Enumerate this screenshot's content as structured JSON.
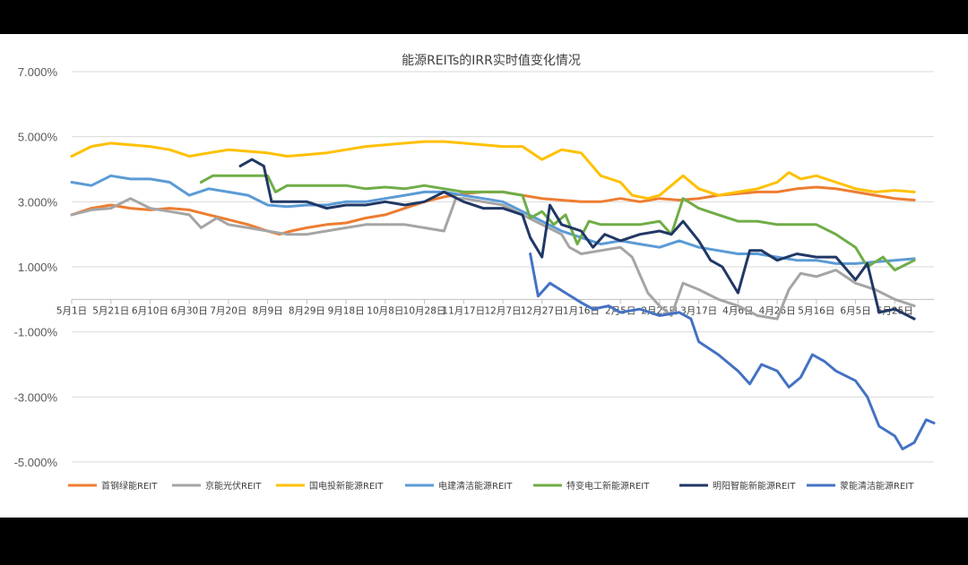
{
  "chart_data": {
    "type": "line",
    "title": "能源REITs的IRR实时值变化情况",
    "xlabel": "",
    "ylabel": "",
    "ylim": [
      -5,
      7
    ],
    "y_ticks": [
      7,
      5,
      3,
      1,
      -1,
      -3,
      -5
    ],
    "y_tick_labels": [
      "7.000%",
      "5.000%",
      "3.000%",
      "1.000%",
      "-1.000%",
      "-3.000%",
      "-5.000%"
    ],
    "x_tick_labels": [
      "5月1日",
      "5月21日",
      "6月10日",
      "6月30日",
      "7月20日",
      "8月9日",
      "8月29日",
      "9月18日",
      "10月8日",
      "10月28日",
      "11月17日",
      "12月7日",
      "12月27日",
      "1月16日",
      "2月5日",
      "2月25日",
      "3月17日",
      "4月6日",
      "4月26日",
      "5月16日",
      "6月5日",
      "6月25日"
    ],
    "x_tick_count": 22,
    "grid": true,
    "legend_position": "bottom",
    "series": [
      {
        "name": "首钢绿能REIT",
        "color": "#ED7D31",
        "points": [
          [
            0,
            2.6
          ],
          [
            0.5,
            2.8
          ],
          [
            1,
            2.9
          ],
          [
            1.5,
            2.8
          ],
          [
            2,
            2.75
          ],
          [
            2.5,
            2.8
          ],
          [
            3,
            2.75
          ],
          [
            3.5,
            2.6
          ],
          [
            4,
            2.45
          ],
          [
            4.5,
            2.3
          ],
          [
            5,
            2.1
          ],
          [
            5.3,
            2.0
          ],
          [
            5.6,
            2.1
          ],
          [
            6,
            2.2
          ],
          [
            6.5,
            2.3
          ],
          [
            7,
            2.35
          ],
          [
            7.5,
            2.5
          ],
          [
            8,
            2.6
          ],
          [
            8.5,
            2.8
          ],
          [
            9,
            3.0
          ],
          [
            9.5,
            3.15
          ],
          [
            10,
            3.25
          ],
          [
            10.5,
            3.3
          ],
          [
            11,
            3.3
          ],
          [
            11.5,
            3.2
          ],
          [
            12,
            3.1
          ],
          [
            12.5,
            3.05
          ],
          [
            13,
            3.0
          ],
          [
            13.5,
            3.0
          ],
          [
            14,
            3.1
          ],
          [
            14.5,
            3.0
          ],
          [
            15,
            3.1
          ],
          [
            15.5,
            3.05
          ],
          [
            16,
            3.1
          ],
          [
            16.5,
            3.2
          ],
          [
            17,
            3.25
          ],
          [
            17.5,
            3.3
          ],
          [
            18,
            3.3
          ],
          [
            18.5,
            3.4
          ],
          [
            19,
            3.45
          ],
          [
            19.5,
            3.4
          ],
          [
            20,
            3.3
          ],
          [
            20.5,
            3.2
          ],
          [
            21,
            3.1
          ],
          [
            21.5,
            3.05
          ]
        ]
      },
      {
        "name": "京能光伏REIT",
        "color": "#A5A5A5",
        "points": [
          [
            0,
            2.6
          ],
          [
            0.5,
            2.75
          ],
          [
            1,
            2.8
          ],
          [
            1.5,
            3.1
          ],
          [
            2,
            2.8
          ],
          [
            2.5,
            2.7
          ],
          [
            3,
            2.6
          ],
          [
            3.3,
            2.2
          ],
          [
            3.7,
            2.5
          ],
          [
            4,
            2.3
          ],
          [
            4.5,
            2.2
          ],
          [
            5,
            2.1
          ],
          [
            5.5,
            2.0
          ],
          [
            6,
            2.0
          ],
          [
            6.5,
            2.1
          ],
          [
            7,
            2.2
          ],
          [
            7.5,
            2.3
          ],
          [
            8,
            2.3
          ],
          [
            8.5,
            2.3
          ],
          [
            9,
            2.2
          ],
          [
            9.5,
            2.1
          ],
          [
            9.8,
            3.1
          ],
          [
            10,
            3.1
          ],
          [
            10.5,
            3.0
          ],
          [
            11,
            2.9
          ],
          [
            11.5,
            2.6
          ],
          [
            12,
            2.3
          ],
          [
            12.5,
            2.0
          ],
          [
            12.7,
            1.6
          ],
          [
            13,
            1.4
          ],
          [
            13.5,
            1.5
          ],
          [
            14,
            1.6
          ],
          [
            14.3,
            1.3
          ],
          [
            14.7,
            0.2
          ],
          [
            15,
            -0.2
          ],
          [
            15.3,
            -0.5
          ],
          [
            15.6,
            0.5
          ],
          [
            16,
            0.3
          ],
          [
            16.5,
            0.0
          ],
          [
            17,
            -0.2
          ],
          [
            17.5,
            -0.5
          ],
          [
            18,
            -0.6
          ],
          [
            18.3,
            0.3
          ],
          [
            18.6,
            0.8
          ],
          [
            19,
            0.7
          ],
          [
            19.5,
            0.9
          ],
          [
            20,
            0.5
          ],
          [
            20.5,
            0.3
          ],
          [
            21,
            0.0
          ],
          [
            21.5,
            -0.2
          ]
        ]
      },
      {
        "name": "国电投新能源REIT",
        "color": "#FFC000",
        "points": [
          [
            0,
            4.4
          ],
          [
            0.5,
            4.7
          ],
          [
            1,
            4.8
          ],
          [
            1.5,
            4.75
          ],
          [
            2,
            4.7
          ],
          [
            2.5,
            4.6
          ],
          [
            3,
            4.4
          ],
          [
            3.5,
            4.5
          ],
          [
            4,
            4.6
          ],
          [
            4.5,
            4.55
          ],
          [
            5,
            4.5
          ],
          [
            5.5,
            4.4
          ],
          [
            6,
            4.45
          ],
          [
            6.5,
            4.5
          ],
          [
            7,
            4.6
          ],
          [
            7.5,
            4.7
          ],
          [
            8,
            4.75
          ],
          [
            8.5,
            4.8
          ],
          [
            9,
            4.85
          ],
          [
            9.5,
            4.85
          ],
          [
            10,
            4.8
          ],
          [
            10.5,
            4.75
          ],
          [
            11,
            4.7
          ],
          [
            11.5,
            4.7
          ],
          [
            12,
            4.3
          ],
          [
            12.5,
            4.6
          ],
          [
            13,
            4.5
          ],
          [
            13.5,
            3.8
          ],
          [
            14,
            3.6
          ],
          [
            14.3,
            3.2
          ],
          [
            14.7,
            3.1
          ],
          [
            15,
            3.2
          ],
          [
            15.3,
            3.5
          ],
          [
            15.6,
            3.8
          ],
          [
            16,
            3.4
          ],
          [
            16.5,
            3.2
          ],
          [
            17,
            3.3
          ],
          [
            17.5,
            3.4
          ],
          [
            18,
            3.6
          ],
          [
            18.3,
            3.9
          ],
          [
            18.6,
            3.7
          ],
          [
            19,
            3.8
          ],
          [
            19.5,
            3.6
          ],
          [
            20,
            3.4
          ],
          [
            20.5,
            3.3
          ],
          [
            21,
            3.35
          ],
          [
            21.5,
            3.3
          ]
        ]
      },
      {
        "name": "电建清洁能源REIT",
        "color": "#5B9BD5",
        "points": [
          [
            0,
            3.6
          ],
          [
            0.5,
            3.5
          ],
          [
            1,
            3.8
          ],
          [
            1.5,
            3.7
          ],
          [
            2,
            3.7
          ],
          [
            2.5,
            3.6
          ],
          [
            3,
            3.2
          ],
          [
            3.5,
            3.4
          ],
          [
            4,
            3.3
          ],
          [
            4.5,
            3.2
          ],
          [
            5,
            2.9
          ],
          [
            5.5,
            2.85
          ],
          [
            6,
            2.9
          ],
          [
            6.5,
            2.9
          ],
          [
            7,
            3.0
          ],
          [
            7.5,
            3.0
          ],
          [
            8,
            3.1
          ],
          [
            8.5,
            3.2
          ],
          [
            9,
            3.3
          ],
          [
            9.5,
            3.3
          ],
          [
            10,
            3.2
          ],
          [
            10.5,
            3.1
          ],
          [
            11,
            3.0
          ],
          [
            11.5,
            2.7
          ],
          [
            12,
            2.4
          ],
          [
            12.5,
            2.1
          ],
          [
            13,
            1.9
          ],
          [
            13.5,
            1.7
          ],
          [
            14,
            1.8
          ],
          [
            14.5,
            1.7
          ],
          [
            15,
            1.6
          ],
          [
            15.5,
            1.8
          ],
          [
            16,
            1.6
          ],
          [
            16.5,
            1.5
          ],
          [
            17,
            1.4
          ],
          [
            17.5,
            1.4
          ],
          [
            18,
            1.3
          ],
          [
            18.5,
            1.2
          ],
          [
            19,
            1.2
          ],
          [
            19.5,
            1.1
          ],
          [
            20,
            1.1
          ],
          [
            20.5,
            1.15
          ],
          [
            21,
            1.2
          ],
          [
            21.5,
            1.25
          ]
        ]
      },
      {
        "name": "特变电工新能源REIT",
        "color": "#70AD47",
        "points": [
          [
            3.3,
            3.6
          ],
          [
            3.6,
            3.8
          ],
          [
            4,
            3.8
          ],
          [
            4.5,
            3.8
          ],
          [
            5,
            3.8
          ],
          [
            5.2,
            3.3
          ],
          [
            5.5,
            3.5
          ],
          [
            6,
            3.5
          ],
          [
            6.5,
            3.5
          ],
          [
            7,
            3.5
          ],
          [
            7.5,
            3.4
          ],
          [
            8,
            3.45
          ],
          [
            8.5,
            3.4
          ],
          [
            9,
            3.5
          ],
          [
            9.5,
            3.4
          ],
          [
            10,
            3.3
          ],
          [
            10.5,
            3.3
          ],
          [
            11,
            3.3
          ],
          [
            11.5,
            3.2
          ],
          [
            11.7,
            2.5
          ],
          [
            12,
            2.7
          ],
          [
            12.3,
            2.3
          ],
          [
            12.6,
            2.6
          ],
          [
            12.9,
            1.7
          ],
          [
            13.2,
            2.4
          ],
          [
            13.5,
            2.3
          ],
          [
            14,
            2.3
          ],
          [
            14.5,
            2.3
          ],
          [
            15,
            2.4
          ],
          [
            15.3,
            2.0
          ],
          [
            15.6,
            3.1
          ],
          [
            16,
            2.8
          ],
          [
            16.5,
            2.6
          ],
          [
            17,
            2.4
          ],
          [
            17.5,
            2.4
          ],
          [
            18,
            2.3
          ],
          [
            18.5,
            2.3
          ],
          [
            19,
            2.3
          ],
          [
            19.5,
            2.0
          ],
          [
            20,
            1.6
          ],
          [
            20.3,
            1.0
          ],
          [
            20.7,
            1.3
          ],
          [
            21,
            0.9
          ],
          [
            21.5,
            1.2
          ]
        ]
      },
      {
        "name": "明阳智能新能源REIT",
        "color": "#203864",
        "points": [
          [
            4.3,
            4.1
          ],
          [
            4.6,
            4.3
          ],
          [
            4.9,
            4.1
          ],
          [
            5.1,
            3.0
          ],
          [
            5.5,
            3.0
          ],
          [
            6,
            3.0
          ],
          [
            6.5,
            2.8
          ],
          [
            7,
            2.9
          ],
          [
            7.5,
            2.9
          ],
          [
            8,
            3.0
          ],
          [
            8.5,
            2.9
          ],
          [
            9,
            3.0
          ],
          [
            9.5,
            3.3
          ],
          [
            10,
            3.0
          ],
          [
            10.5,
            2.8
          ],
          [
            11,
            2.8
          ],
          [
            11.5,
            2.6
          ],
          [
            11.7,
            1.9
          ],
          [
            12,
            1.3
          ],
          [
            12.2,
            2.9
          ],
          [
            12.5,
            2.3
          ],
          [
            13,
            2.1
          ],
          [
            13.3,
            1.6
          ],
          [
            13.6,
            2.0
          ],
          [
            14,
            1.8
          ],
          [
            14.5,
            2.0
          ],
          [
            15,
            2.1
          ],
          [
            15.3,
            2.0
          ],
          [
            15.6,
            2.4
          ],
          [
            16,
            1.8
          ],
          [
            16.3,
            1.2
          ],
          [
            16.6,
            1.0
          ],
          [
            17,
            0.2
          ],
          [
            17.3,
            1.5
          ],
          [
            17.6,
            1.5
          ],
          [
            18,
            1.2
          ],
          [
            18.5,
            1.4
          ],
          [
            19,
            1.3
          ],
          [
            19.5,
            1.3
          ],
          [
            20,
            0.6
          ],
          [
            20.3,
            1.1
          ],
          [
            20.6,
            -0.4
          ],
          [
            21,
            -0.3
          ],
          [
            21.5,
            -0.6
          ]
        ]
      },
      {
        "name": "蒙能清洁能源REIT",
        "color": "#4472C4",
        "points": [
          [
            11.7,
            1.4
          ],
          [
            11.9,
            0.1
          ],
          [
            12.2,
            0.5
          ],
          [
            12.6,
            0.2
          ],
          [
            13,
            -0.1
          ],
          [
            13.3,
            -0.3
          ],
          [
            13.7,
            -0.2
          ],
          [
            14,
            -0.4
          ],
          [
            14.5,
            -0.3
          ],
          [
            15,
            -0.5
          ],
          [
            15.5,
            -0.4
          ],
          [
            15.8,
            -0.6
          ],
          [
            16,
            -1.3
          ],
          [
            16.5,
            -1.7
          ],
          [
            17,
            -2.2
          ],
          [
            17.3,
            -2.6
          ],
          [
            17.6,
            -2.0
          ],
          [
            18,
            -2.2
          ],
          [
            18.3,
            -2.7
          ],
          [
            18.6,
            -2.4
          ],
          [
            18.9,
            -1.7
          ],
          [
            19.2,
            -1.9
          ],
          [
            19.5,
            -2.2
          ],
          [
            20,
            -2.5
          ],
          [
            20.3,
            -3.0
          ],
          [
            20.6,
            -3.9
          ],
          [
            21,
            -4.2
          ],
          [
            21.2,
            -4.6
          ],
          [
            21.5,
            -4.4
          ],
          [
            21.8,
            -3.7
          ],
          [
            22,
            -3.8
          ]
        ]
      }
    ]
  }
}
